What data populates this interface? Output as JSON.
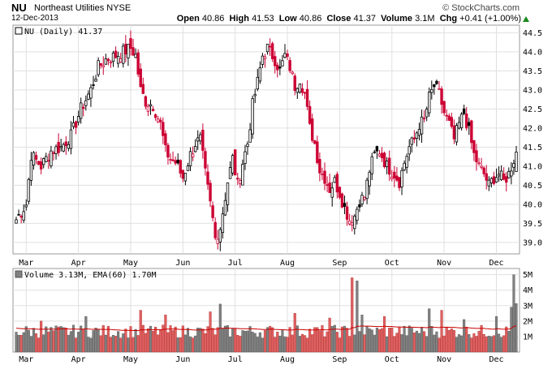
{
  "header": {
    "symbol": "NU",
    "company": "Northeast Utilities",
    "exchange": "NYSE",
    "date": "12-Dec-2013",
    "brand": "© StockCharts.com",
    "open_label": "Open",
    "open": "40.86",
    "high_label": "High",
    "high": "41.53",
    "low_label": "Low",
    "low": "40.86",
    "close_label": "Close",
    "close": "41.37",
    "volume_label": "Volume",
    "volume": "3.1M",
    "chg_label": "Chg",
    "chg": "+0.41 (+1.00%)"
  },
  "chart_data": [
    {
      "type": "candlestick",
      "legend": "NU (Daily) 41.37",
      "y_ticks": [
        39.0,
        39.5,
        40.0,
        40.5,
        41.0,
        41.5,
        42.0,
        42.5,
        43.0,
        43.5,
        44.0,
        44.5
      ],
      "ylim": [
        38.7,
        44.7
      ],
      "x_ticks": [
        "Mar",
        "Apr",
        "May",
        "Jun",
        "Jul",
        "Aug",
        "Sep",
        "Oct",
        "Nov",
        "Dec"
      ],
      "x_tick_index": [
        4,
        25,
        46,
        67,
        88,
        109,
        130,
        151,
        172,
        193
      ],
      "bar_count": 202,
      "close_anchors": [
        [
          0,
          39.6
        ],
        [
          4,
          40.0
        ],
        [
          6,
          41.3
        ],
        [
          10,
          41.0
        ],
        [
          14,
          41.4
        ],
        [
          18,
          41.5
        ],
        [
          22,
          41.8
        ],
        [
          26,
          42.5
        ],
        [
          30,
          43.0
        ],
        [
          33,
          43.6
        ],
        [
          36,
          43.8
        ],
        [
          40,
          43.9
        ],
        [
          43,
          44.0
        ],
        [
          46,
          44.1
        ],
        [
          48,
          43.9
        ],
        [
          50,
          43.0
        ],
        [
          52,
          42.7
        ],
        [
          55,
          42.6
        ],
        [
          58,
          42.1
        ],
        [
          60,
          41.4
        ],
        [
          62,
          41.2
        ],
        [
          64,
          41.1
        ],
        [
          67,
          40.7
        ],
        [
          70,
          41.3
        ],
        [
          72,
          41.6
        ],
        [
          74,
          41.7
        ],
        [
          76,
          40.8
        ],
        [
          79,
          39.6
        ],
        [
          80,
          39.1
        ],
        [
          82,
          39.4
        ],
        [
          85,
          40.6
        ],
        [
          87,
          41.2
        ],
        [
          89,
          40.5
        ],
        [
          91,
          41.1
        ],
        [
          93,
          41.6
        ],
        [
          95,
          42.6
        ],
        [
          97,
          43.2
        ],
        [
          99,
          43.9
        ],
        [
          101,
          44.1
        ],
        [
          104,
          43.8
        ],
        [
          106,
          43.5
        ],
        [
          108,
          43.9
        ],
        [
          110,
          43.6
        ],
        [
          112,
          43.1
        ],
        [
          114,
          43.3
        ],
        [
          116,
          42.9
        ],
        [
          118,
          42.0
        ],
        [
          120,
          41.6
        ],
        [
          122,
          40.9
        ],
        [
          124,
          40.7
        ],
        [
          126,
          40.4
        ],
        [
          128,
          40.6
        ],
        [
          130,
          40.3
        ],
        [
          132,
          39.9
        ],
        [
          134,
          39.6
        ],
        [
          136,
          39.7
        ],
        [
          138,
          40.1
        ],
        [
          140,
          40.2
        ],
        [
          142,
          40.9
        ],
        [
          144,
          41.3
        ],
        [
          146,
          41.4
        ],
        [
          149,
          41.0
        ],
        [
          152,
          40.8
        ],
        [
          154,
          40.6
        ],
        [
          156,
          41.1
        ],
        [
          158,
          41.5
        ],
        [
          160,
          41.7
        ],
        [
          162,
          42.1
        ],
        [
          164,
          42.2
        ],
        [
          166,
          42.8
        ],
        [
          168,
          43.1
        ],
        [
          170,
          42.9
        ],
        [
          172,
          42.4
        ],
        [
          174,
          42.1
        ],
        [
          176,
          41.7
        ],
        [
          178,
          42.1
        ],
        [
          180,
          42.4
        ],
        [
          182,
          41.9
        ],
        [
          184,
          41.3
        ],
        [
          186,
          41.0
        ],
        [
          188,
          40.8
        ],
        [
          190,
          40.5
        ],
        [
          192,
          40.7
        ],
        [
          194,
          40.8
        ],
        [
          196,
          40.6
        ],
        [
          198,
          40.8
        ],
        [
          201,
          41.37
        ]
      ]
    },
    {
      "type": "bar",
      "legend": "Volume 3.13M, EMA(60) 1.70M",
      "y_ticks": [
        "1M",
        "2M",
        "3M",
        "4M",
        "5M"
      ],
      "ylim": [
        0,
        5.4
      ],
      "ema_end": 1.7,
      "last_volume": 3.13,
      "spikes": [
        [
          10,
          2.0
        ],
        [
          28,
          2.3
        ],
        [
          50,
          2.7
        ],
        [
          60,
          2.4
        ],
        [
          78,
          2.6
        ],
        [
          82,
          3.1
        ],
        [
          112,
          2.5
        ],
        [
          126,
          2.2
        ],
        [
          135,
          4.8
        ],
        [
          137,
          4.6
        ],
        [
          139,
          2.4
        ],
        [
          148,
          2.3
        ],
        [
          166,
          2.8
        ],
        [
          171,
          2.7
        ],
        [
          180,
          2.1
        ],
        [
          193,
          2.3
        ],
        [
          199,
          2.9
        ],
        [
          200,
          5.0
        ],
        [
          201,
          3.13
        ]
      ]
    }
  ]
}
